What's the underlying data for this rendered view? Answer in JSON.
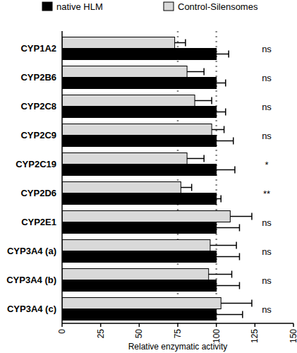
{
  "chart_data": {
    "type": "bar",
    "orientation": "horizontal",
    "x_label": "Relative enzymatic activity",
    "categories": [
      "CYP1A2",
      "CYP2B6",
      "CYP2C8",
      "CYP2C9",
      "CYP2C19",
      "CYP2D6",
      "CYP2E1",
      "CYP3A4 (a)",
      "CYP3A4 (b)",
      "CYP3A4 (c)"
    ],
    "series": [
      {
        "name": "native HLM",
        "color": "#000000",
        "values": [
          100,
          100,
          100,
          100,
          100,
          100,
          100,
          100,
          100,
          100
        ],
        "errors": [
          8,
          6,
          6,
          11,
          12,
          3,
          15,
          15,
          15,
          17
        ]
      },
      {
        "name": "Control-Silensomes",
        "color": "#d9d9d9",
        "values": [
          73,
          81,
          86,
          97,
          81,
          77,
          109,
          96,
          95,
          103
        ],
        "errors": [
          7,
          11,
          11,
          8,
          11,
          7,
          14,
          17,
          15,
          20
        ]
      }
    ],
    "annotations": [
      "ns",
      "ns",
      "ns",
      "ns",
      "*",
      "**",
      "ns",
      "ns",
      "ns",
      "ns"
    ],
    "reference_lines": [
      75,
      100
    ],
    "xlim": [
      0,
      150
    ],
    "xticks": [
      0,
      25,
      50,
      75,
      100,
      125,
      150
    ],
    "legend": "top",
    "grid": false
  }
}
